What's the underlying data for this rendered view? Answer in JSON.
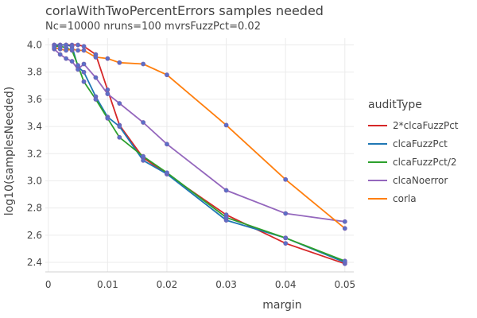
{
  "chart_data": {
    "type": "line",
    "title": "corlaWithTwoPercentErrors samples needed",
    "subtitle": "Nc=10000 nruns=100 mvrsFuzzPct=0.02",
    "xlabel": "margin",
    "ylabel": "log10(samplesNeeded)",
    "xlim": [
      -0.0005,
      0.0515
    ],
    "ylim": [
      2.33,
      4.05
    ],
    "xticks": [
      "0",
      "0.01",
      "0.02",
      "0.03",
      "0.04",
      "0.05"
    ],
    "xtick_values": [
      0,
      0.01,
      0.02,
      0.03,
      0.04,
      0.05
    ],
    "yticks": [
      "2.4",
      "2.6",
      "2.8",
      "3.0",
      "3.2",
      "3.4",
      "3.6",
      "3.8",
      "4.0"
    ],
    "ytick_values": [
      2.4,
      2.6,
      2.8,
      3.0,
      3.2,
      3.4,
      3.6,
      3.8,
      4.0
    ],
    "grid": true,
    "legend_title": "auditType",
    "legend_position": "right",
    "marker_color": "#5b70c8",
    "series": [
      {
        "name": "2*clcaFuzzPct",
        "color": "#d62728",
        "x": [
          0.001,
          0.002,
          0.003,
          0.004,
          0.005,
          0.006,
          0.008,
          0.01,
          0.012,
          0.016,
          0.02,
          0.03,
          0.04,
          0.05
        ],
        "y": [
          4.0,
          4.0,
          4.0,
          4.0,
          4.0,
          3.99,
          3.93,
          3.67,
          3.41,
          3.17,
          3.05,
          2.75,
          2.54,
          2.39
        ]
      },
      {
        "name": "clcaFuzzPct",
        "color": "#1f77b4",
        "x": [
          0.001,
          0.002,
          0.003,
          0.004,
          0.005,
          0.006,
          0.008,
          0.01,
          0.012,
          0.016,
          0.02,
          0.03,
          0.04,
          0.05
        ],
        "y": [
          4.0,
          4.0,
          4.0,
          3.99,
          3.84,
          3.8,
          3.62,
          3.47,
          3.4,
          3.15,
          3.05,
          2.71,
          2.58,
          2.4
        ]
      },
      {
        "name": "clcaFuzzPct/2",
        "color": "#2ca02c",
        "x": [
          0.001,
          0.002,
          0.003,
          0.004,
          0.005,
          0.006,
          0.008,
          0.01,
          0.012,
          0.016,
          0.02,
          0.03,
          0.04,
          0.05
        ],
        "y": [
          3.99,
          3.99,
          3.98,
          3.96,
          3.85,
          3.73,
          3.6,
          3.46,
          3.32,
          3.18,
          3.06,
          2.73,
          2.58,
          2.41
        ]
      },
      {
        "name": "clcaNoerror",
        "color": "#9467bd",
        "x": [
          0.001,
          0.002,
          0.003,
          0.004,
          0.005,
          0.006,
          0.008,
          0.01,
          0.012,
          0.016,
          0.02,
          0.03,
          0.04,
          0.05
        ],
        "y": [
          3.97,
          3.93,
          3.9,
          3.88,
          3.82,
          3.86,
          3.76,
          3.64,
          3.57,
          3.43,
          3.27,
          2.93,
          2.76,
          2.7
        ]
      },
      {
        "name": "corla",
        "color": "#ff7f0e",
        "x": [
          0.001,
          0.002,
          0.003,
          0.004,
          0.005,
          0.006,
          0.008,
          0.01,
          0.012,
          0.016,
          0.02,
          0.03,
          0.04,
          0.05
        ],
        "y": [
          3.98,
          3.97,
          3.96,
          3.97,
          3.96,
          3.96,
          3.91,
          3.9,
          3.87,
          3.86,
          3.78,
          3.41,
          3.01,
          2.65
        ]
      }
    ]
  }
}
